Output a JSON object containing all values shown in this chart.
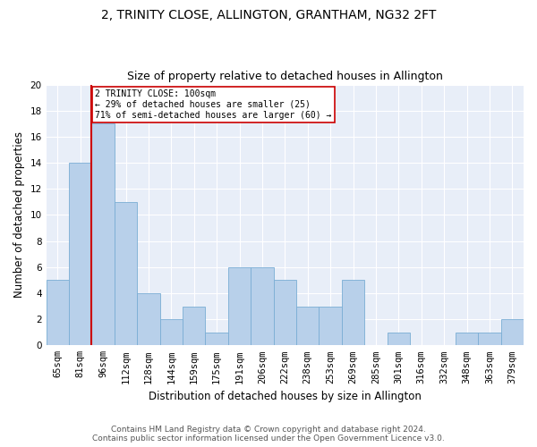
{
  "title_line1": "2, TRINITY CLOSE, ALLINGTON, GRANTHAM, NG32 2FT",
  "title_line2": "Size of property relative to detached houses in Allington",
  "xlabel": "Distribution of detached houses by size in Allington",
  "ylabel": "Number of detached properties",
  "footer_line1": "Contains HM Land Registry data © Crown copyright and database right 2024.",
  "footer_line2": "Contains public sector information licensed under the Open Government Licence v3.0.",
  "categories": [
    "65sqm",
    "81sqm",
    "96sqm",
    "112sqm",
    "128sqm",
    "144sqm",
    "159sqm",
    "175sqm",
    "191sqm",
    "206sqm",
    "222sqm",
    "238sqm",
    "253sqm",
    "269sqm",
    "285sqm",
    "301sqm",
    "316sqm",
    "332sqm",
    "348sqm",
    "363sqm",
    "379sqm"
  ],
  "values": [
    5,
    14,
    17,
    11,
    4,
    2,
    3,
    1,
    6,
    6,
    5,
    3,
    3,
    5,
    0,
    1,
    0,
    0,
    1,
    1,
    2
  ],
  "bar_color": "#b8d0ea",
  "bar_edge_color": "#7aadd4",
  "vline_color": "#cc0000",
  "annotation_text": "2 TRINITY CLOSE: 100sqm\n← 29% of detached houses are smaller (25)\n71% of semi-detached houses are larger (60) →",
  "annotation_box_color": "#ffffff",
  "annotation_box_edge": "#cc0000",
  "ylim": [
    0,
    20
  ],
  "yticks": [
    0,
    2,
    4,
    6,
    8,
    10,
    12,
    14,
    16,
    18,
    20
  ],
  "background_color": "#ffffff",
  "plot_bg_color": "#e8eef8",
  "grid_color": "#ffffff",
  "title_fontsize": 10,
  "subtitle_fontsize": 9,
  "axis_label_fontsize": 8.5,
  "tick_fontsize": 7.5,
  "footer_fontsize": 6.5
}
